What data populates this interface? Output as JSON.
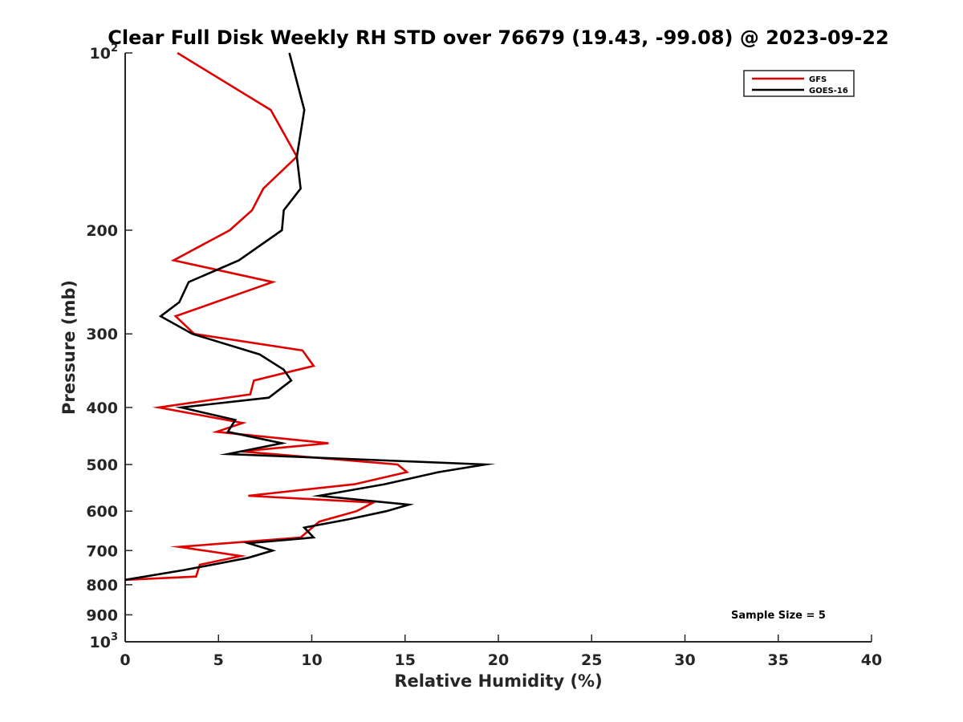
{
  "chart_data": {
    "type": "line",
    "title": "Clear Full Disk Weekly RH STD over 76679 (19.43, -99.08) @ 2023-09-22",
    "xlabel": "Relative Humidity (%)",
    "ylabel": "Pressure (mb)",
    "xlim": [
      0,
      40
    ],
    "ylim": [
      100,
      1000
    ],
    "y_scale": "log",
    "y_reversed": true,
    "grid": false,
    "legend_position": "top-right",
    "x_ticks": [
      "0",
      "5",
      "10",
      "15",
      "20",
      "25",
      "30",
      "35",
      "40"
    ],
    "y_ticks": [
      {
        "value": 100,
        "label": "10",
        "sup": "2"
      },
      {
        "value": 200,
        "label": "200",
        "sup": ""
      },
      {
        "value": 300,
        "label": "300",
        "sup": ""
      },
      {
        "value": 400,
        "label": "400",
        "sup": ""
      },
      {
        "value": 500,
        "label": "500",
        "sup": ""
      },
      {
        "value": 600,
        "label": "600",
        "sup": ""
      },
      {
        "value": 700,
        "label": "700",
        "sup": ""
      },
      {
        "value": 800,
        "label": "800",
        "sup": ""
      },
      {
        "value": 900,
        "label": "900",
        "sup": ""
      },
      {
        "value": 1000,
        "label": "10",
        "sup": "3"
      }
    ],
    "annotation": "Sample Size = 5",
    "series": [
      {
        "name": "GFS",
        "color": "#e00000",
        "points": [
          [
            2.8,
            100
          ],
          [
            7.8,
            125
          ],
          [
            9.2,
            150
          ],
          [
            7.4,
            170
          ],
          [
            6.8,
            185
          ],
          [
            5.6,
            200
          ],
          [
            2.6,
            225
          ],
          [
            7.9,
            245
          ],
          [
            2.7,
            280
          ],
          [
            3.7,
            300
          ],
          [
            9.5,
            320
          ],
          [
            10.1,
            340
          ],
          [
            6.9,
            360
          ],
          [
            6.7,
            380
          ],
          [
            1.8,
            400
          ],
          [
            6.3,
            425
          ],
          [
            4.9,
            440
          ],
          [
            10.9,
            460
          ],
          [
            6.2,
            475
          ],
          [
            14.6,
            500
          ],
          [
            15.1,
            515
          ],
          [
            12.3,
            540
          ],
          [
            6.6,
            565
          ],
          [
            13.3,
            580
          ],
          [
            12.4,
            600
          ],
          [
            10.4,
            625
          ],
          [
            9.4,
            665
          ],
          [
            2.9,
            690
          ],
          [
            6.2,
            715
          ],
          [
            4.0,
            740
          ],
          [
            3.8,
            775
          ],
          [
            0.0,
            785
          ]
        ]
      },
      {
        "name": "GOES-16",
        "color": "#000000",
        "points": [
          [
            8.8,
            100
          ],
          [
            9.6,
            125
          ],
          [
            9.2,
            150
          ],
          [
            9.4,
            170
          ],
          [
            8.5,
            185
          ],
          [
            8.4,
            200
          ],
          [
            6.1,
            225
          ],
          [
            3.4,
            245
          ],
          [
            2.9,
            265
          ],
          [
            1.9,
            280
          ],
          [
            3.6,
            300
          ],
          [
            7.2,
            325
          ],
          [
            8.5,
            345
          ],
          [
            8.9,
            360
          ],
          [
            7.7,
            385
          ],
          [
            3.0,
            400
          ],
          [
            5.9,
            420
          ],
          [
            5.5,
            440
          ],
          [
            8.4,
            460
          ],
          [
            5.5,
            480
          ],
          [
            19.3,
            500
          ],
          [
            16.8,
            515
          ],
          [
            13.9,
            540
          ],
          [
            10.4,
            565
          ],
          [
            15.2,
            585
          ],
          [
            14.0,
            600
          ],
          [
            11.9,
            620
          ],
          [
            9.6,
            640
          ],
          [
            10.1,
            665
          ],
          [
            6.6,
            680
          ],
          [
            7.9,
            700
          ],
          [
            6.6,
            720
          ],
          [
            3.2,
            755
          ],
          [
            0.0,
            785
          ]
        ]
      }
    ]
  }
}
